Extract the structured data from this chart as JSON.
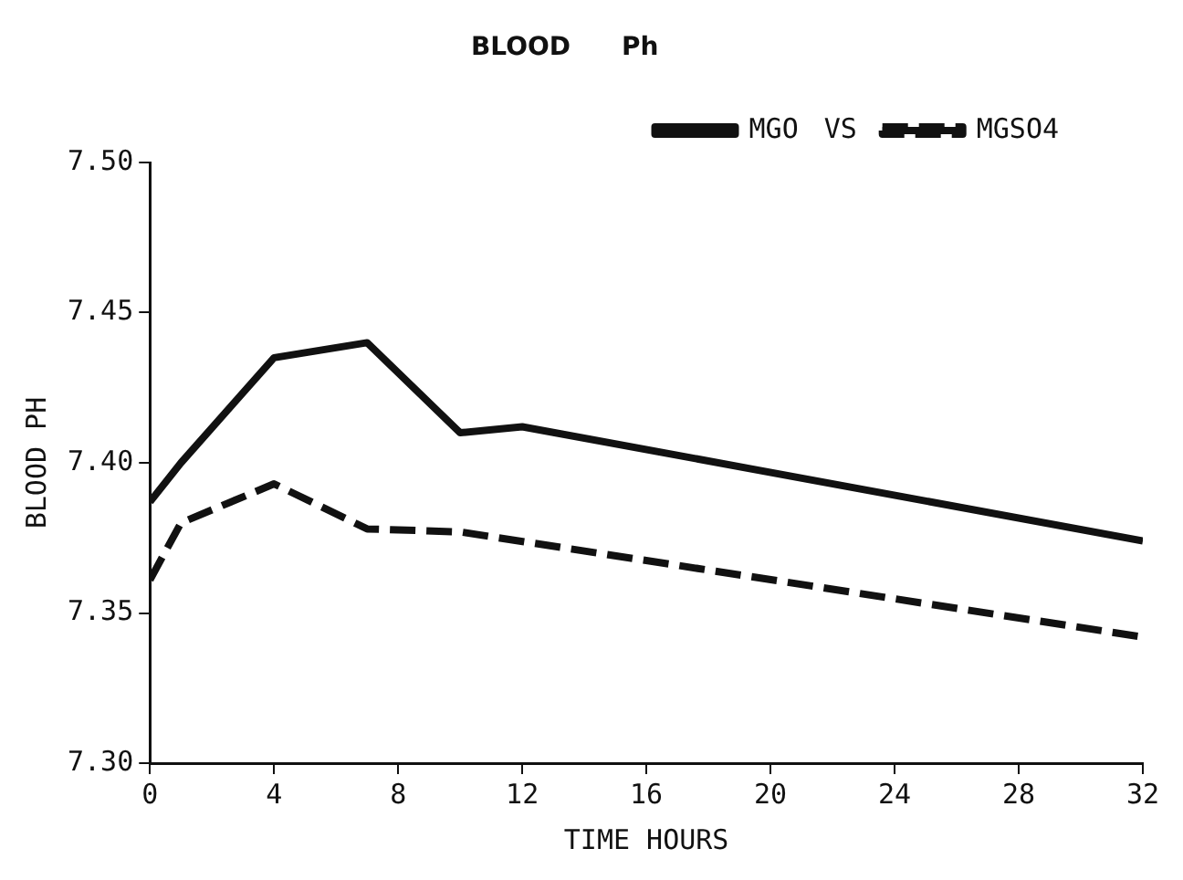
{
  "chart_data": {
    "type": "line",
    "title": "BLOOD Ph",
    "xlabel": "TIME HOURS",
    "ylabel": "BLOOD PH",
    "annotations": [
      "VS"
    ],
    "series": [
      {
        "name": "MGO",
        "color": "#111111",
        "line_style": "solid",
        "x": [
          0,
          1,
          4,
          7,
          10,
          12,
          32
        ],
        "values": [
          7.387,
          7.4,
          7.435,
          7.44,
          7.41,
          7.412,
          7.374
        ]
      },
      {
        "name": "MGSO4",
        "color": "#111111",
        "line_style": "dashed",
        "x": [
          0,
          1,
          4,
          7,
          10,
          32
        ],
        "values": [
          7.361,
          7.38,
          7.393,
          7.378,
          7.377,
          7.342
        ]
      }
    ],
    "xlim": [
      0,
      32
    ],
    "xticks": [
      0,
      4,
      8,
      12,
      16,
      20,
      24,
      28,
      32
    ],
    "ylim": [
      7.3,
      7.5
    ],
    "yticks": [
      {
        "value": 7.3,
        "label": "7.30"
      },
      {
        "value": 7.35,
        "label": "7.35"
      },
      {
        "value": 7.4,
        "label": "7.40"
      },
      {
        "value": 7.45,
        "label": "7.45"
      },
      {
        "value": 7.5,
        "label": "7.50"
      }
    ],
    "grid": false,
    "legend": "top right",
    "marker": "none"
  }
}
